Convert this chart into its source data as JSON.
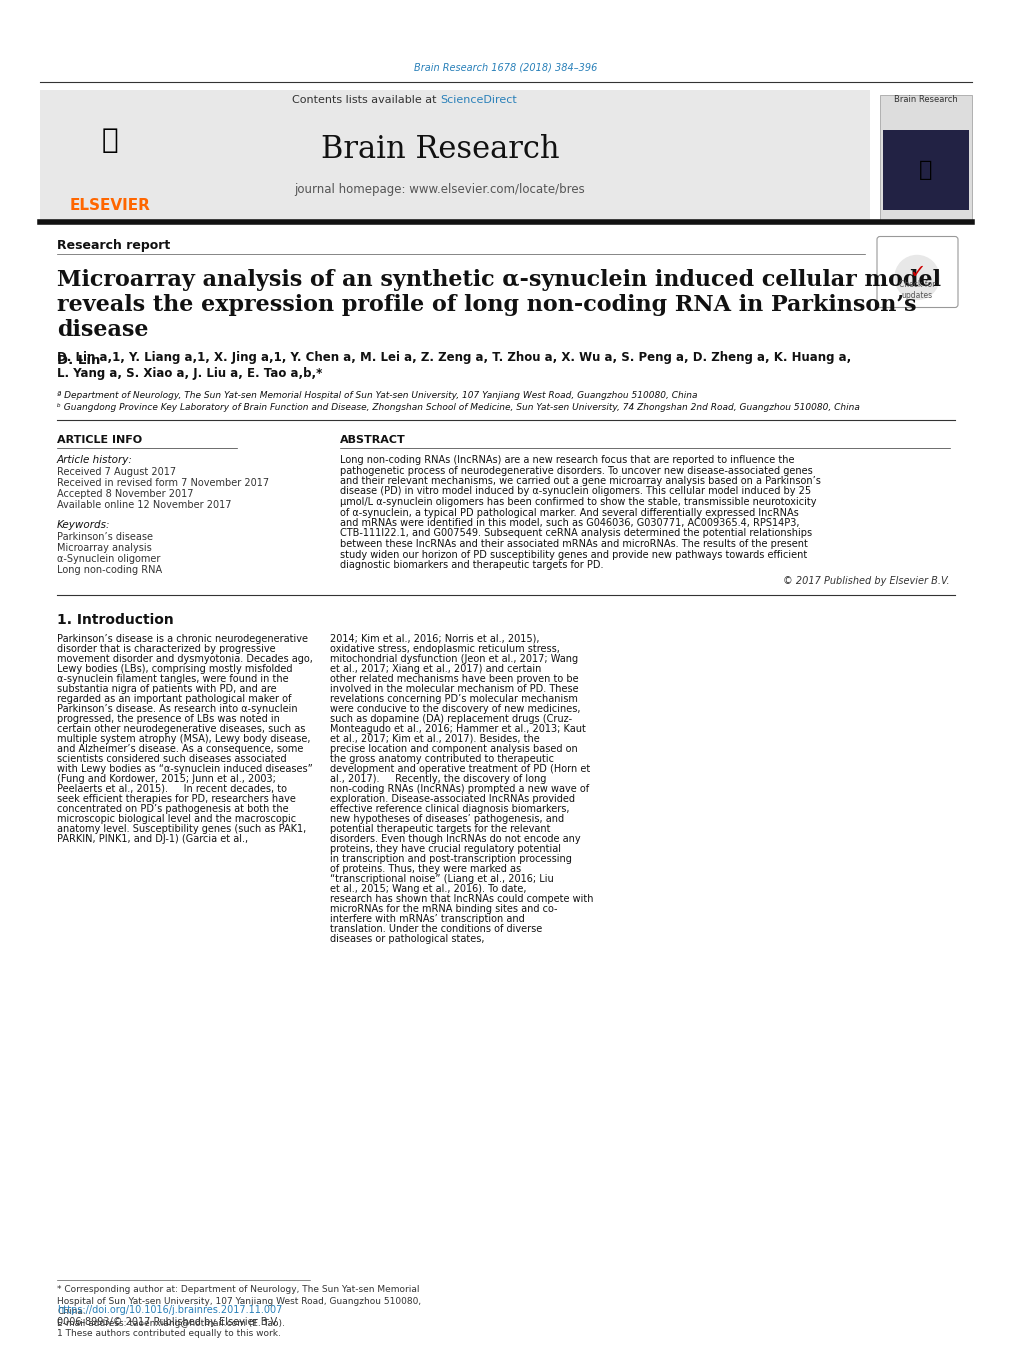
{
  "bg_color": "#ffffff",
  "header_line_color": "#333333",
  "journal_header_bg": "#e8e8e8",
  "journal_title": "Brain Research",
  "journal_url": "journal homepage: www.elsevier.com/locate/bres",
  "contents_text": "Contents lists available at ",
  "sciencedirect_text": "ScienceDirect",
  "sciencedirect_color": "#2980b9",
  "elsevier_color": "#FF6600",
  "top_journal_ref": "Brain Research 1678 (2018) 384–396",
  "top_journal_ref_color": "#2980b9",
  "research_report_label": "Research report",
  "paper_title": "Microarray analysis of an synthetic α-synuclein induced cellular model\nreveals the expression profile of long non-coding RNA in Parkinson’s\ndisease",
  "authors": "D. Lin a,1, Y. Liang a,1, X. Jing a,1, Y. Chen a, M. Lei a, Z. Zeng a, T. Zhou a, X. Wu a, S. Peng a, D. Zheng a, K. Huang a,\nL. Yang a, S. Xiao a, J. Liu a, E. Tao a,b,*",
  "affil_a": "ª Department of Neurology, The Sun Yat-sen Memorial Hospital of Sun Yat-sen University, 107 Yanjiang West Road, Guangzhou 510080, China",
  "affil_b": "ᵇ Guangdong Province Key Laboratory of Brain Function and Disease, Zhongshan School of Medicine, Sun Yat-sen University, 74 Zhongshan 2nd Road, Guangzhou 510080, China",
  "article_info_title": "ARTICLE INFO",
  "abstract_title": "ABSTRACT",
  "article_history_label": "Article history:",
  "received_1": "Received 7 August 2017",
  "received_2": "Received in revised form 7 November 2017",
  "accepted": "Accepted 8 November 2017",
  "available": "Available online 12 November 2017",
  "keywords_label": "Keywords:",
  "keywords": [
    "Parkinson’s disease",
    "Microarray analysis",
    "α-Synuclein oligomer",
    "Long non-coding RNA"
  ],
  "abstract_text": "Long non-coding RNAs (lncRNAs) are a new research focus that are reported to influence the pathogenetic process of neurodegenerative disorders. To uncover new disease-associated genes and their relevant mechanisms, we carried out a gene microarray analysis based on a Parkinson’s disease (PD) in vitro model induced by α-synuclein oligomers. This cellular model induced by 25 μmol/L α-synuclein oligomers has been confirmed to show the stable, transmissible neurotoxicity of α-synuclein, a typical PD pathological marker. And several differentially expressed lncRNAs and mRNAs were identified in this model, such as G046036, G030771, AC009365.4, RPS14P3, CTB-111I22.1, and G007549. Subsequent ceRNA analysis determined the potential relationships between these lncRNAs and their associated mRNAs and microRNAs. The results of the present study widen our horizon of PD susceptibility genes and provide new pathways towards efficient diagnostic biomarkers and therapeutic targets for PD.",
  "copyright": "© 2017 Published by Elsevier B.V.",
  "intro_title": "1. Introduction",
  "intro_col1": "Parkinson’s disease is a chronic neurodegenerative disorder that is characterized by progressive movement disorder and dysmyotonia. Decades ago, Lewy bodies (LBs), comprising mostly misfolded α-synuclein filament tangles, were found in the substantia nigra of patients with PD, and are regarded as an important pathological maker of Parkinson’s disease. As research into α-synuclein progressed, the presence of LBs was noted in certain other neurodegenerative diseases, such as multiple system atrophy (MSA), Lewy body disease, and Alzheimer’s disease. As a consequence, some scientists considered such diseases associated with Lewy bodies as “α-synuclein induced diseases” (Fung and Kordower, 2015; Junn et al., 2003; Peelaerts et al., 2015).\n    In recent decades, to seek efficient therapies for PD, researchers have concentrated on PD’s pathogenesis at both the microscopic biological level and the macroscopic anatomy level. Susceptibility genes (such as PAK1, PARKIN, PINK1, and DJ-1) (Garcia et al.,",
  "intro_col2": "2014; Kim et al., 2016; Norris et al., 2015), oxidative stress, endoplasmic reticulum stress, mitochondrial dysfunction (Jeon et al., 2017; Wang et al., 2017; Xiang et al., 2017) and certain other related mechanisms have been proven to be involved in the molecular mechanism of PD. These revelations concerning PD’s molecular mechanism were conducive to the discovery of new medicines, such as dopamine (DA) replacement drugs (Cruz-Monteagudo et al., 2016; Hammer et al., 2013; Kaut et al., 2017; Kim et al., 2017). Besides, the precise location and component analysis based on the gross anatomy contributed to therapeutic development and operative treatment of PD (Horn et al., 2017).\n    Recently, the discovery of long non-coding RNAs (lncRNAs) prompted a new wave of exploration. Disease-associated lncRNAs provided effective reference clinical diagnosis biomarkers, new hypotheses of diseases’ pathogenesis, and potential therapeutic targets for the relevant disorders. Even though lncRNAs do not encode any proteins, they have crucial regulatory potential in transcription and post-transcription processing of proteins. Thus, they were marked as “transcriptional noise” (Liang et al., 2016; Liu et al., 2015; Wang et al., 2016). To date, research has shown that lncRNAs could compete with microRNAs for the mRNA binding sites and co-interfere with mRNAs’ transcription and translation. Under the conditions of diverse diseases or pathological states,",
  "footnote_corr": "* Corresponding author at: Department of Neurology, The Sun Yat-sen Memorial\nHospital of Sun Yat-sen University, 107 Yanjiang West Road, Guangzhou 510080,\nChina.",
  "footnote_email": "E-mail address: taoenxiang@hotmail.com (E. Tao).",
  "footnote_1": "1 These authors contributed equally to this work.",
  "doi_text": "https://doi.org/10.1016/j.brainres.2017.11.007",
  "issn_text": "0006-8993/© 2017 Published by Elsevier B.V.",
  "link_color": "#2980b9"
}
